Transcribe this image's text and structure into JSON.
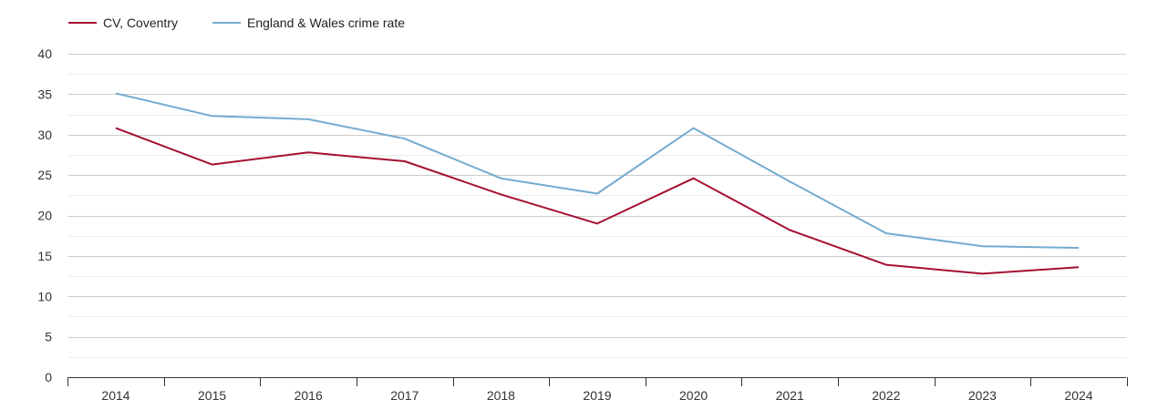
{
  "chart_data": {
    "type": "line",
    "title": "",
    "xlabel": "",
    "ylabel": "",
    "categories": [
      "2014",
      "2015",
      "2016",
      "2017",
      "2018",
      "2019",
      "2020",
      "2021",
      "2022",
      "2023",
      "2024"
    ],
    "ylim": [
      0,
      40
    ],
    "yticks": [
      0,
      5,
      10,
      15,
      20,
      25,
      30,
      35,
      40
    ],
    "grid": true,
    "legend_position": "top-left",
    "series": [
      {
        "name": "CV, Coventry",
        "color": "#a50f32",
        "values": [
          30.8,
          26.3,
          27.8,
          26.7,
          22.6,
          19.0,
          24.6,
          18.2,
          13.9,
          12.8,
          13.6
        ]
      },
      {
        "name": "England & Wales crime rate",
        "color": "#74abd0",
        "values": [
          35.1,
          32.3,
          31.9,
          29.5,
          24.6,
          22.7,
          30.8,
          24.2,
          17.8,
          16.2,
          16.0
        ]
      }
    ]
  }
}
